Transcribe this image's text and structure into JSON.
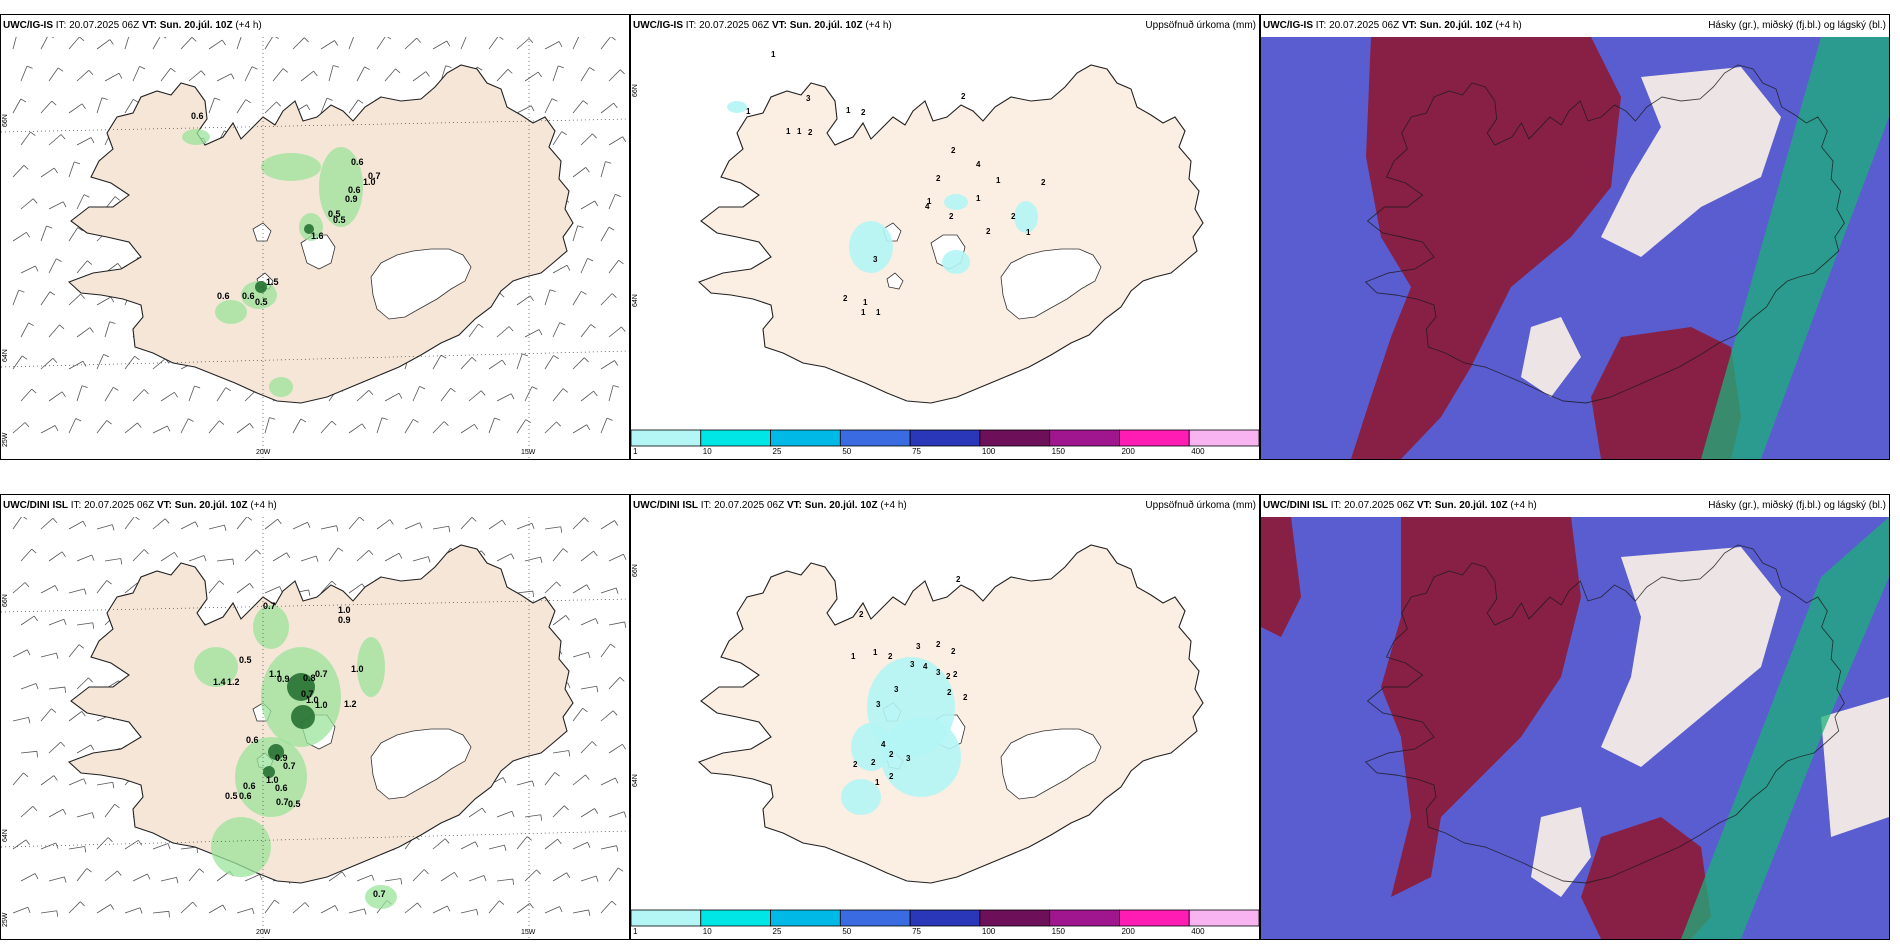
{
  "colors": {
    "land": "#f5e6d8",
    "land_precip": "#fbeee2",
    "precip_green": "#9be39b",
    "precip_dark": "#1d6b2c",
    "cloud_low": "#5a5dcf",
    "cloud_high": "#8c1a3a",
    "cloud_mid": "#1eb07a",
    "colorbar": [
      "#b4f5f5",
      "#00e6e6",
      "#00b9e6",
      "#3a6be0",
      "#2a37b8",
      "#6e0f5a",
      "#a0168f",
      "#ff1cb4",
      "#f7b4f0"
    ]
  },
  "panels": {
    "igis_wind": {
      "model": "UWC/IG-IS",
      "it_label": "IT:",
      "it_value": "20.07.2025 06Z",
      "vt_label": "VT:",
      "vt_value": "Sun. 20.júl. 10Z",
      "lead": "(+4 h)",
      "lat_labels": [
        "66N",
        "64N",
        "25W"
      ],
      "lon_labels": [
        "20W",
        "15W"
      ],
      "values": [
        "0.6",
        "0.6",
        "0.7",
        "1.0",
        "0.6",
        "0.9",
        "0.5",
        "0.5",
        "1.6",
        "1.5",
        "0.6",
        "0.6",
        "0.5"
      ]
    },
    "igis_precip": {
      "model": "UWC/IG-IS",
      "it_label": "IT:",
      "it_value": "20.07.2025 06Z",
      "vt_label": "VT:",
      "vt_value": "Sun. 20.júl. 10Z",
      "lead": "(+4 h)",
      "title": "Uppsöfnuð úrkoma (mm)",
      "lat_labels": [
        "66N",
        "64N"
      ],
      "values": [
        "1",
        "3",
        "1",
        "1",
        "1",
        "2",
        "1",
        "2",
        "2",
        "2",
        "2",
        "4",
        "1",
        "1",
        "1",
        "2",
        "4",
        "2",
        "2",
        "1",
        "2",
        "3",
        "2",
        "1",
        "1",
        "1"
      ],
      "colorbar_ticks": [
        "1",
        "10",
        "25",
        "50",
        "75",
        "100",
        "150",
        "200",
        "400"
      ]
    },
    "igis_cloud": {
      "model": "UWC/IG-IS",
      "it_label": "IT:",
      "it_value": "20.07.2025 06Z",
      "vt_label": "VT:",
      "vt_value": "Sun. 20.júl. 10Z",
      "lead": "(+4 h)",
      "title": "Hásky (gr.), miðský (fj.bl.) og lágský (bl.)"
    },
    "dini_wind": {
      "model": "UWC/DINI ISL",
      "it_label": "IT:",
      "it_value": "20.07.2025 06Z",
      "vt_label": "VT:",
      "vt_value": "Sun. 20.júl. 10Z",
      "lead": "(+4 h)",
      "lat_labels": [
        "66N",
        "64N",
        "25W"
      ],
      "lon_labels": [
        "20W",
        "15W"
      ],
      "values": [
        "0.7",
        "1.0",
        "0.9",
        "0.5",
        "1.4",
        "1.2",
        "1.1",
        "0.9",
        "0.8",
        "0.7",
        "0.7",
        "1.0",
        "1.0",
        "1.2",
        "1.0",
        "0.6",
        "0.9",
        "0.7",
        "1.0",
        "0.6",
        "0.6",
        "0.5",
        "0.6",
        "0.7",
        "0.5",
        "0.7"
      ]
    },
    "dini_precip": {
      "model": "UWC/DINI ISL",
      "it_label": "IT:",
      "it_value": "20.07.2025 06Z",
      "vt_label": "VT:",
      "vt_value": "Sun. 20.júl. 10Z",
      "lead": "(+4 h)",
      "title": "Uppsöfnuð úrkoma (mm)",
      "lat_labels": [
        "66N",
        "64N"
      ],
      "values": [
        "2",
        "2",
        "1",
        "1",
        "2",
        "3",
        "2",
        "2",
        "2",
        "3",
        "4",
        "3",
        "2",
        "2",
        "3",
        "3",
        "2",
        "4",
        "2",
        "2",
        "3",
        "2",
        "1",
        "2"
      ],
      "colorbar_ticks": [
        "1",
        "10",
        "25",
        "50",
        "75",
        "100",
        "150",
        "200",
        "400"
      ]
    },
    "dini_cloud": {
      "model": "UWC/DINI ISL",
      "it_label": "IT:",
      "it_value": "20.07.2025 06Z",
      "vt_label": "VT:",
      "vt_value": "Sun. 20.júl. 10Z",
      "lead": "(+4 h)",
      "title": "Hásky (gr.), miðský (fj.bl.) og lágský (bl.)"
    }
  }
}
